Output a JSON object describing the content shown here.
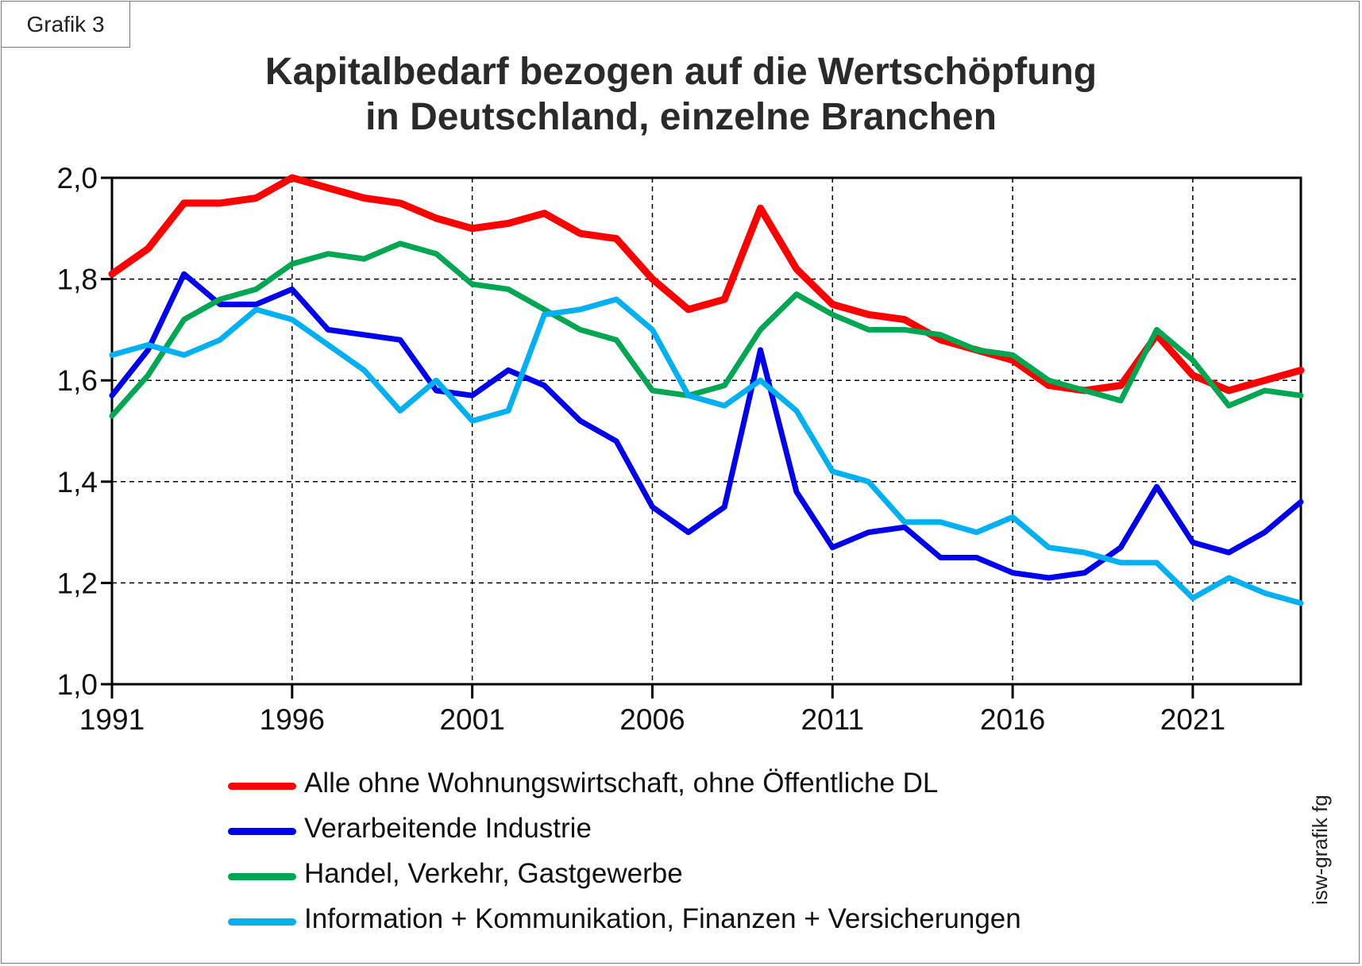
{
  "badge": "Grafik 3",
  "title_lines": [
    "Kapitalbedarf bezogen auf die Wertschöpfung",
    "in Deutschland, einzelne Branchen"
  ],
  "credit": "isw-grafik fg",
  "chart_data": {
    "type": "line",
    "title": "Kapitalbedarf bezogen auf die Wertschöpfung in Deutschland, einzelne Branchen",
    "xlabel": "",
    "ylabel": "",
    "xlim": [
      1991,
      2024
    ],
    "ylim": [
      1.0,
      2.0
    ],
    "grid": true,
    "x_ticks": [
      1991,
      1996,
      2001,
      2006,
      2011,
      2016,
      2021
    ],
    "x_tick_labels": [
      "1991",
      "1996",
      "2001",
      "2006",
      "2011",
      "2016",
      "2021"
    ],
    "y_ticks": [
      1.0,
      1.2,
      1.4,
      1.6,
      1.8,
      2.0
    ],
    "y_tick_labels": [
      "1,0",
      "1,2",
      "1,4",
      "1,6",
      "1,8",
      "2,0"
    ],
    "legend_position": "bottom",
    "x": [
      1991,
      1992,
      1993,
      1994,
      1995,
      1996,
      1997,
      1998,
      1999,
      2000,
      2001,
      2002,
      2003,
      2004,
      2005,
      2006,
      2007,
      2008,
      2009,
      2010,
      2011,
      2012,
      2013,
      2014,
      2015,
      2016,
      2017,
      2018,
      2019,
      2020,
      2021,
      2022,
      2023,
      2024
    ],
    "series": [
      {
        "name": "Alle ohne Wohnungswirtschaft, ohne Öffentliche DL",
        "color": "#ff0000",
        "values": [
          1.81,
          1.86,
          1.95,
          1.95,
          1.96,
          2.0,
          1.98,
          1.96,
          1.95,
          1.92,
          1.9,
          1.91,
          1.93,
          1.89,
          1.88,
          1.8,
          1.74,
          1.76,
          1.94,
          1.82,
          1.75,
          1.73,
          1.72,
          1.68,
          1.66,
          1.64,
          1.59,
          1.58,
          1.59,
          1.69,
          1.61,
          1.58,
          1.6,
          1.62
        ]
      },
      {
        "name": "Verarbeitende Industrie",
        "color": "#0000ee",
        "values": [
          1.57,
          1.66,
          1.81,
          1.75,
          1.75,
          1.78,
          1.7,
          1.69,
          1.68,
          1.58,
          1.57,
          1.62,
          1.59,
          1.52,
          1.48,
          1.35,
          1.3,
          1.35,
          1.66,
          1.38,
          1.27,
          1.3,
          1.31,
          1.25,
          1.25,
          1.22,
          1.21,
          1.22,
          1.27,
          1.39,
          1.28,
          1.26,
          1.3,
          1.36
        ]
      },
      {
        "name": "Handel, Verkehr, Gastgewerbe",
        "color": "#00a651",
        "values": [
          1.53,
          1.61,
          1.72,
          1.76,
          1.78,
          1.83,
          1.85,
          1.84,
          1.87,
          1.85,
          1.79,
          1.78,
          1.74,
          1.7,
          1.68,
          1.58,
          1.57,
          1.59,
          1.7,
          1.77,
          1.73,
          1.7,
          1.7,
          1.69,
          1.66,
          1.65,
          1.6,
          1.58,
          1.56,
          1.7,
          1.64,
          1.55,
          1.58,
          1.57
        ]
      },
      {
        "name": "Information + Kommunikation, Finanzen + Versicherungen",
        "color": "#00b0f0",
        "values": [
          1.65,
          1.67,
          1.65,
          1.68,
          1.74,
          1.72,
          1.67,
          1.62,
          1.54,
          1.6,
          1.52,
          1.54,
          1.73,
          1.74,
          1.76,
          1.7,
          1.57,
          1.55,
          1.6,
          1.54,
          1.42,
          1.4,
          1.32,
          1.32,
          1.3,
          1.33,
          1.27,
          1.26,
          1.24,
          1.24,
          1.17,
          1.21,
          1.18,
          1.16
        ]
      }
    ]
  }
}
